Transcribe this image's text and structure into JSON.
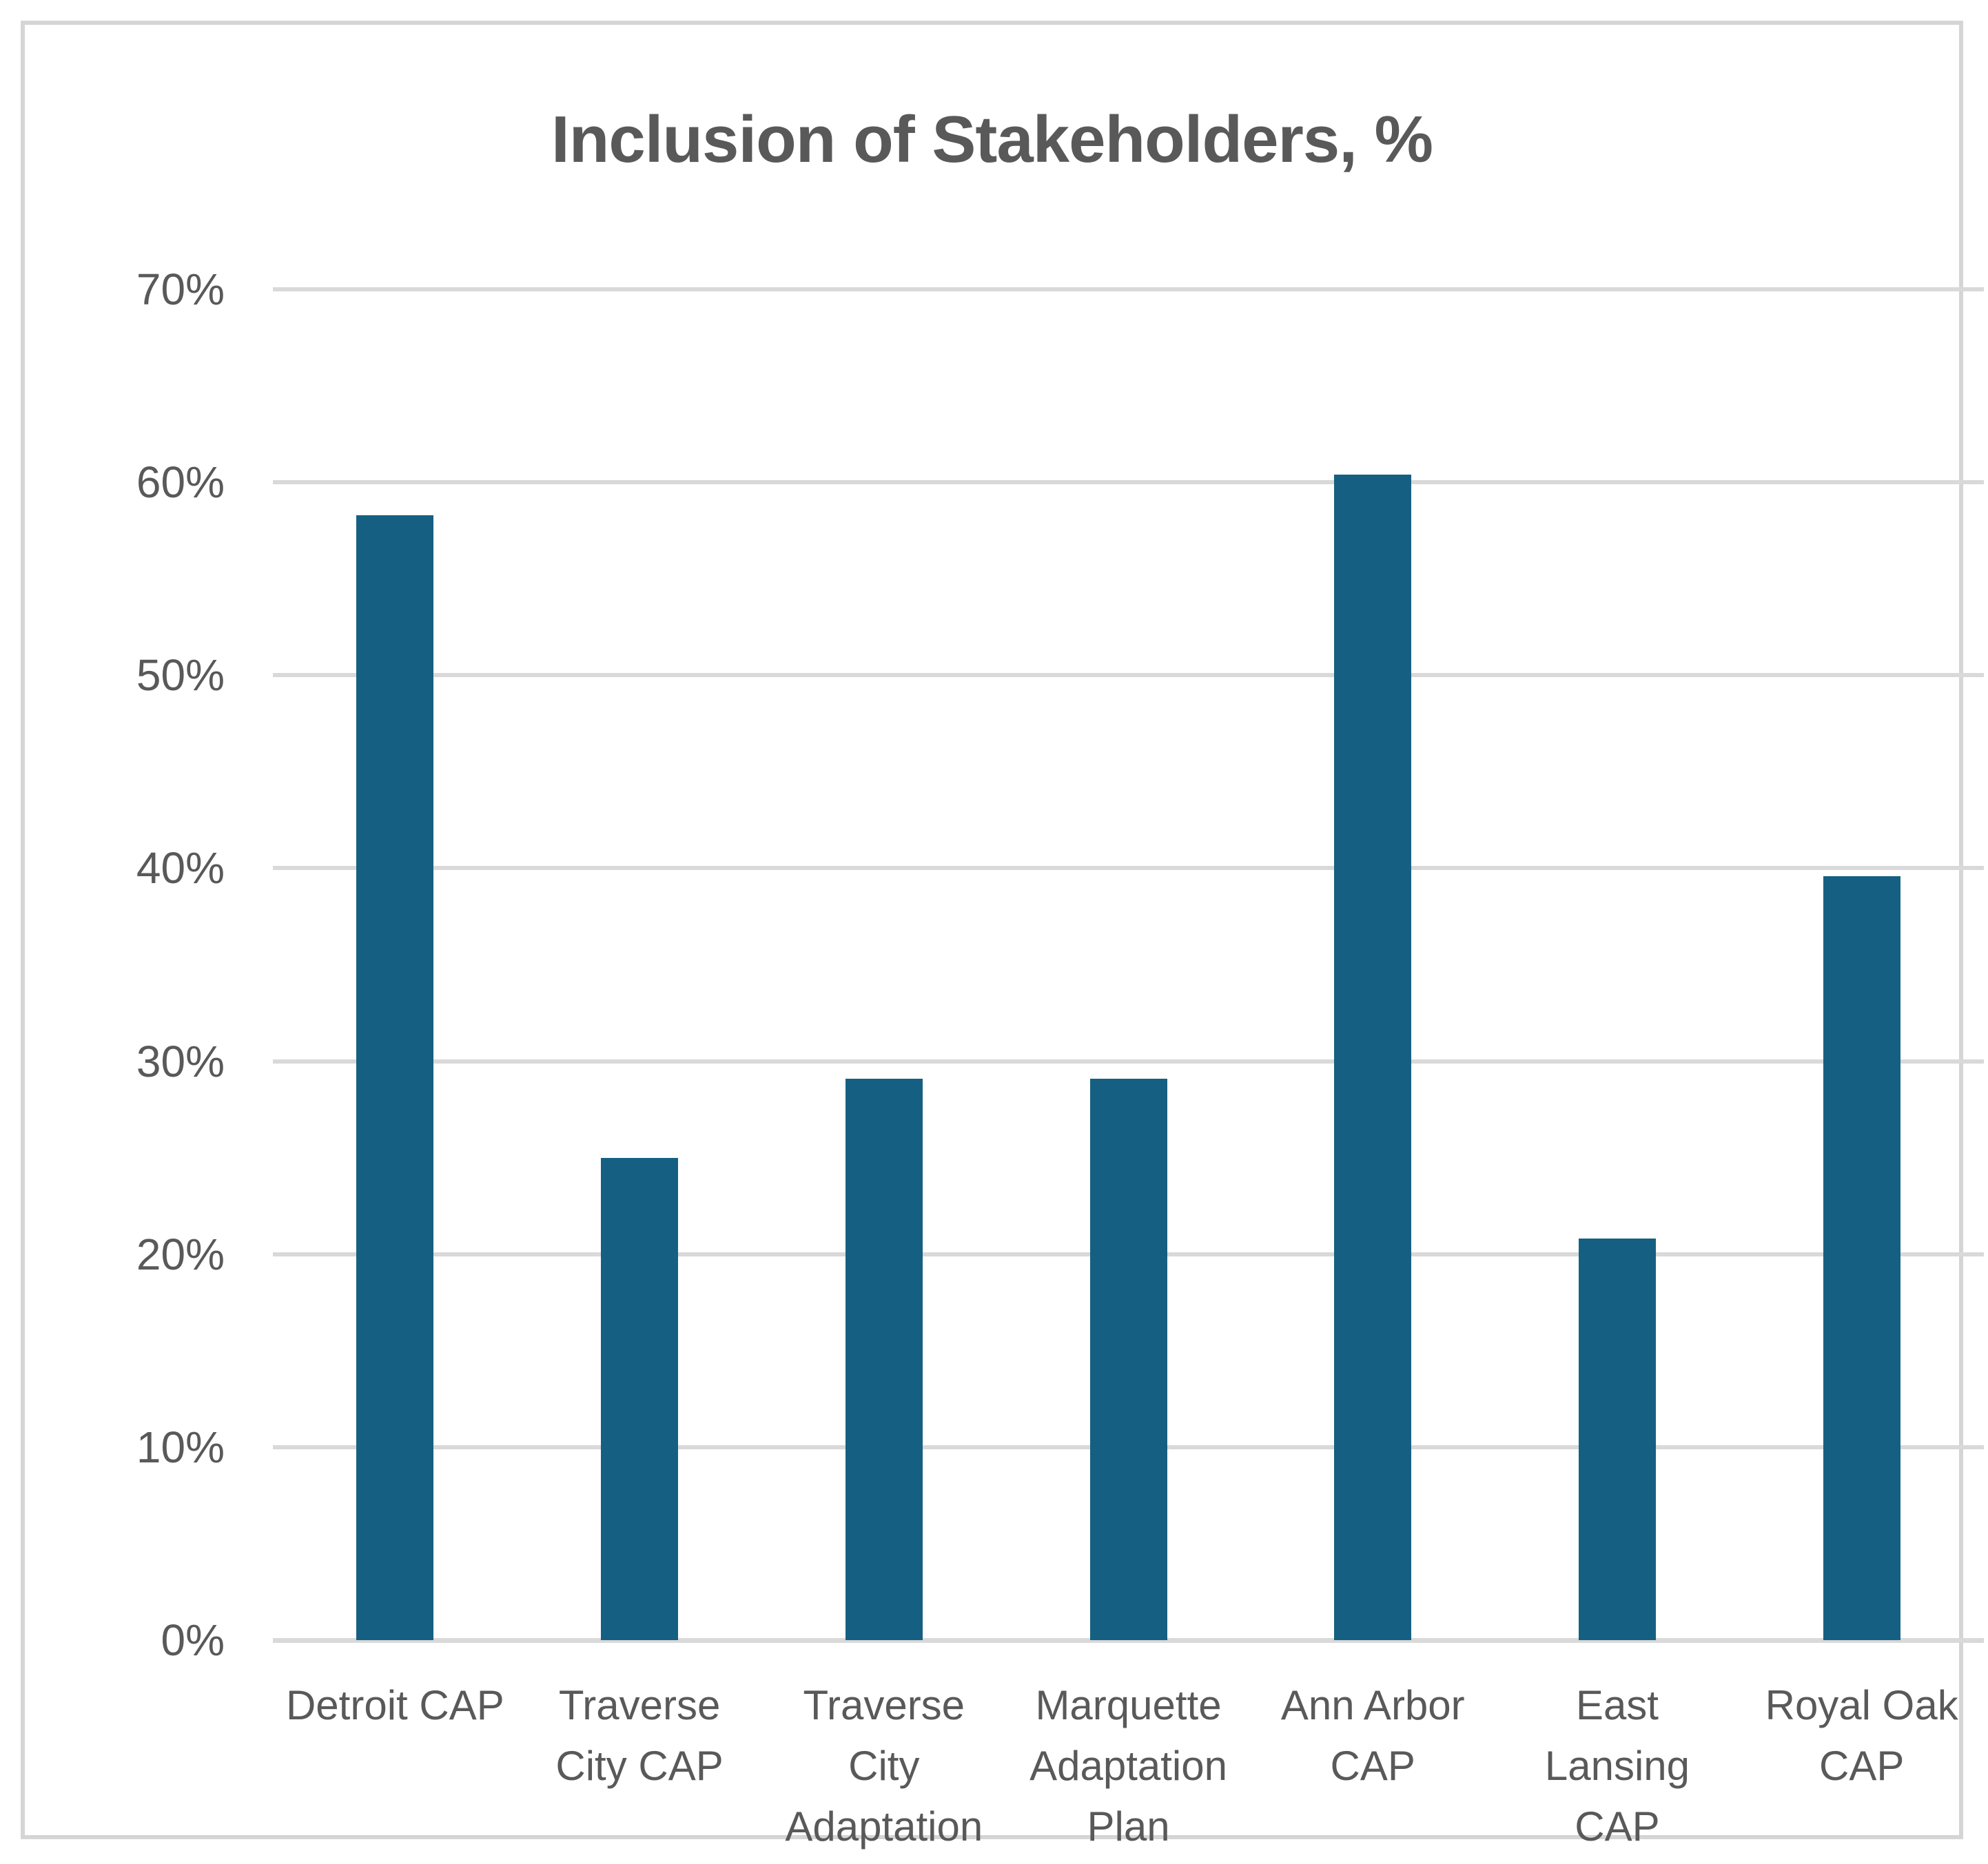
{
  "chart_data": {
    "type": "bar",
    "title": "Inclusion of Stakeholders, %",
    "categories": [
      "Detroit CAP",
      "Traverse\nCity CAP",
      "Traverse\nCity\nAdaptation",
      "Marquette\nAdaptation\nPlan",
      "Ann Arbor\nCAP",
      "East\nLansing\nCAP",
      "Royal Oak\nCAP"
    ],
    "values": [
      58.3,
      25.0,
      29.1,
      29.1,
      60.4,
      20.8,
      39.6
    ],
    "unit": "percent",
    "xlabel": "",
    "ylabel": "",
    "ylim": [
      0,
      70
    ],
    "y_ticks": [
      {
        "value": 70,
        "label": "70%"
      },
      {
        "value": 60,
        "label": "60%"
      },
      {
        "value": 50,
        "label": "50%"
      },
      {
        "value": 40,
        "label": "40%"
      },
      {
        "value": 30,
        "label": "30%"
      },
      {
        "value": 20,
        "label": "20%"
      },
      {
        "value": 10,
        "label": "10%"
      },
      {
        "value": 0,
        "label": "0%"
      }
    ],
    "grid": "horizontal",
    "legend_position": "none",
    "colors": {
      "bar": "#156082",
      "gridline": "#d9d9d9",
      "labels": "#595959",
      "title": "#595959",
      "frame_border": "#d5d5d5",
      "background": "#ffffff"
    }
  }
}
